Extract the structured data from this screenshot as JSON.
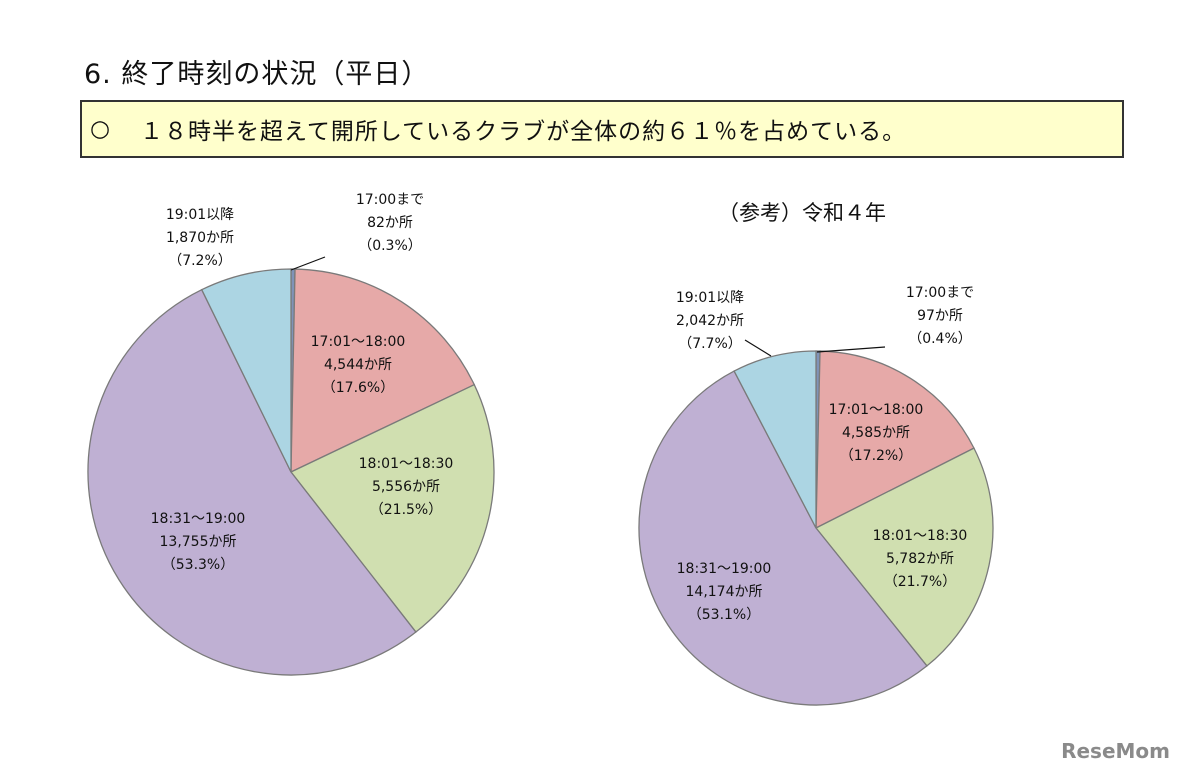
{
  "header": {
    "section_title": "6. 終了時刻の状況（平日）",
    "summary_bullet": "○",
    "summary_text": "１８時半を超えて開所しているクラブが全体の約６１％を占めている。"
  },
  "watermark": "ReseMom",
  "chart_data": [
    {
      "type": "pie",
      "title": "",
      "unit": "か所",
      "slices": [
        {
          "label": "17:00まで",
          "count": 82,
          "count_text": "82か所",
          "percent": 0.3,
          "percent_text": "（0.3%）",
          "color": "#7f93b8"
        },
        {
          "label": "17:01〜18:00",
          "count": 4544,
          "count_text": "4,544か所",
          "percent": 17.6,
          "percent_text": "（17.6%）",
          "color": "#e6a9a8"
        },
        {
          "label": "18:01〜18:30",
          "count": 5556,
          "count_text": "5,556か所",
          "percent": 21.5,
          "percent_text": "（21.5%）",
          "color": "#d0dfb0"
        },
        {
          "label": "18:31〜19:00",
          "count": 13755,
          "count_text": "13,755か所",
          "percent": 53.3,
          "percent_text": "（53.3%）",
          "color": "#bfb0d3"
        },
        {
          "label": "19:01以降",
          "count": 1870,
          "count_text": "1,870か所",
          "percent": 7.2,
          "percent_text": "（7.2%）",
          "color": "#acd5e3"
        }
      ]
    },
    {
      "type": "pie",
      "title": "（参考）令和４年",
      "unit": "か所",
      "slices": [
        {
          "label": "17:00まで",
          "count": 97,
          "count_text": "97か所",
          "percent": 0.4,
          "percent_text": "（0.4%）",
          "color": "#7f93b8"
        },
        {
          "label": "17:01〜18:00",
          "count": 4585,
          "count_text": "4,585か所",
          "percent": 17.2,
          "percent_text": "（17.2%）",
          "color": "#e6a9a8"
        },
        {
          "label": "18:01〜18:30",
          "count": 5782,
          "count_text": "5,782か所",
          "percent": 21.7,
          "percent_text": "（21.7%）",
          "color": "#d0dfb0"
        },
        {
          "label": "18:31〜19:00",
          "count": 14174,
          "count_text": "14,174か所",
          "percent": 53.1,
          "percent_text": "（53.1%）",
          "color": "#bfb0d3"
        },
        {
          "label": "19:01以降",
          "count": 2042,
          "count_text": "2,042か所",
          "percent": 7.7,
          "percent_text": "（7.7%）",
          "color": "#acd5e3"
        }
      ]
    }
  ]
}
